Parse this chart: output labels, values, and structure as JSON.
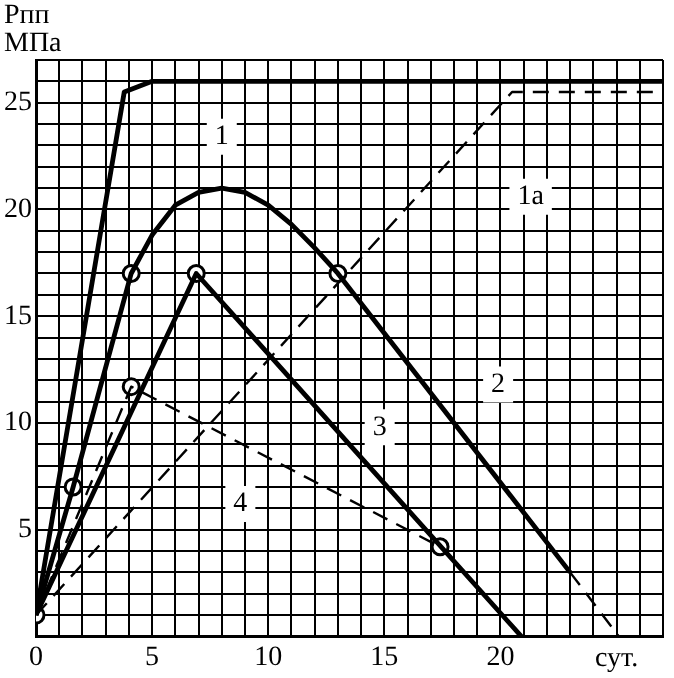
{
  "chart_data": {
    "type": "line",
    "ylabel": "Pпп МПа",
    "xlabel": "сут.",
    "xlim": [
      0,
      27
    ],
    "ylim": [
      0,
      27
    ],
    "xticks": [
      0,
      {
        "value": 1,
        "label": null
      },
      {
        "value": 2,
        "label": null
      },
      {
        "value": 3,
        "label": null
      },
      {
        "value": 4,
        "label": null
      },
      5,
      {
        "value": 6,
        "label": null
      },
      {
        "value": 7,
        "label": null
      },
      {
        "value": 8,
        "label": null
      },
      {
        "value": 9,
        "label": null
      },
      10,
      {
        "value": 11,
        "label": null
      },
      {
        "value": 12,
        "label": null
      },
      {
        "value": 13,
        "label": null
      },
      {
        "value": 14,
        "label": null
      },
      15,
      {
        "value": 16,
        "label": null
      },
      {
        "value": 17,
        "label": null
      },
      {
        "value": 18,
        "label": null
      },
      {
        "value": 19,
        "label": null
      },
      20,
      {
        "value": 21,
        "label": null
      },
      {
        "value": 22,
        "label": null
      },
      {
        "value": 23,
        "label": null
      },
      {
        "value": 24,
        "label": null
      },
      {
        "value": 25,
        "label": null
      },
      {
        "value": 26,
        "label": null
      },
      {
        "value": 27,
        "label": null
      }
    ],
    "yticks": [
      {
        "value": 0,
        "label": null
      },
      {
        "value": 1,
        "label": null
      },
      {
        "value": 2,
        "label": null
      },
      {
        "value": 3,
        "label": null
      },
      {
        "value": 4,
        "label": null
      },
      5,
      {
        "value": 6,
        "label": null
      },
      {
        "value": 7,
        "label": null
      },
      {
        "value": 8,
        "label": null
      },
      {
        "value": 9,
        "label": null
      },
      10,
      {
        "value": 11,
        "label": null
      },
      {
        "value": 12,
        "label": null
      },
      {
        "value": 13,
        "label": null
      },
      {
        "value": 14,
        "label": null
      },
      15,
      {
        "value": 16,
        "label": null
      },
      {
        "value": 17,
        "label": null
      },
      {
        "value": 18,
        "label": null
      },
      {
        "value": 19,
        "label": null
      },
      20,
      {
        "value": 21,
        "label": null
      },
      {
        "value": 22,
        "label": null
      },
      {
        "value": 23,
        "label": null
      },
      {
        "value": 24,
        "label": null
      },
      25,
      {
        "value": 26,
        "label": null
      },
      {
        "value": 27,
        "label": null
      }
    ],
    "grid": true,
    "legend": false,
    "series": [
      {
        "color": "#000000",
        "line_style": "solid",
        "x": [
          0,
          3.8,
          5,
          27
        ],
        "values": [
          1,
          25.5,
          26,
          26
        ]
      },
      {
        "color": "#000000",
        "line_style": "dashed",
        "x": [
          0,
          20.5,
          27
        ],
        "values": [
          1,
          25.5,
          25.5
        ]
      },
      {
        "color": "#000000",
        "line_style": "solid",
        "x": [
          0,
          1.6,
          4.1,
          5,
          6,
          7,
          8,
          9,
          10,
          11,
          12,
          13,
          23
        ],
        "values": [
          1,
          7,
          17,
          18.8,
          20.2,
          20.8,
          21,
          20.8,
          20.2,
          19.3,
          18.2,
          17,
          3
        ]
      },
      {
        "color": "#000000",
        "line_style": "dashed",
        "x": [
          23,
          25.1
        ],
        "values": [
          3,
          0
        ]
      },
      {
        "color": "#000000",
        "line_style": "solid",
        "x": [
          0,
          6.9,
          20.9
        ],
        "values": [
          1,
          17,
          0
        ]
      },
      {
        "color": "#000000",
        "line_style": "dashed",
        "x": [
          0,
          4.1,
          17.4
        ],
        "values": [
          1,
          11.7,
          4.2
        ]
      },
      {
        "type": "scatter",
        "color": "#000000",
        "marker": "circle",
        "x": [
          0,
          1.6,
          4.1,
          13,
          6.9,
          4.1,
          17.4
        ],
        "values": [
          1,
          7,
          17,
          17,
          17,
          11.7,
          4.2
        ]
      }
    ],
    "annotations": [
      {
        "text": "1",
        "x": 8,
        "y": 23.4
      },
      {
        "text": "1а",
        "x": 21.3,
        "y": 20.6
      },
      {
        "text": "2",
        "x": 19.9,
        "y": 11.8
      },
      {
        "text": "3",
        "x": 14.8,
        "y": 9.8
      },
      {
        "text": "4",
        "x": 8.8,
        "y": 6.2
      }
    ]
  }
}
